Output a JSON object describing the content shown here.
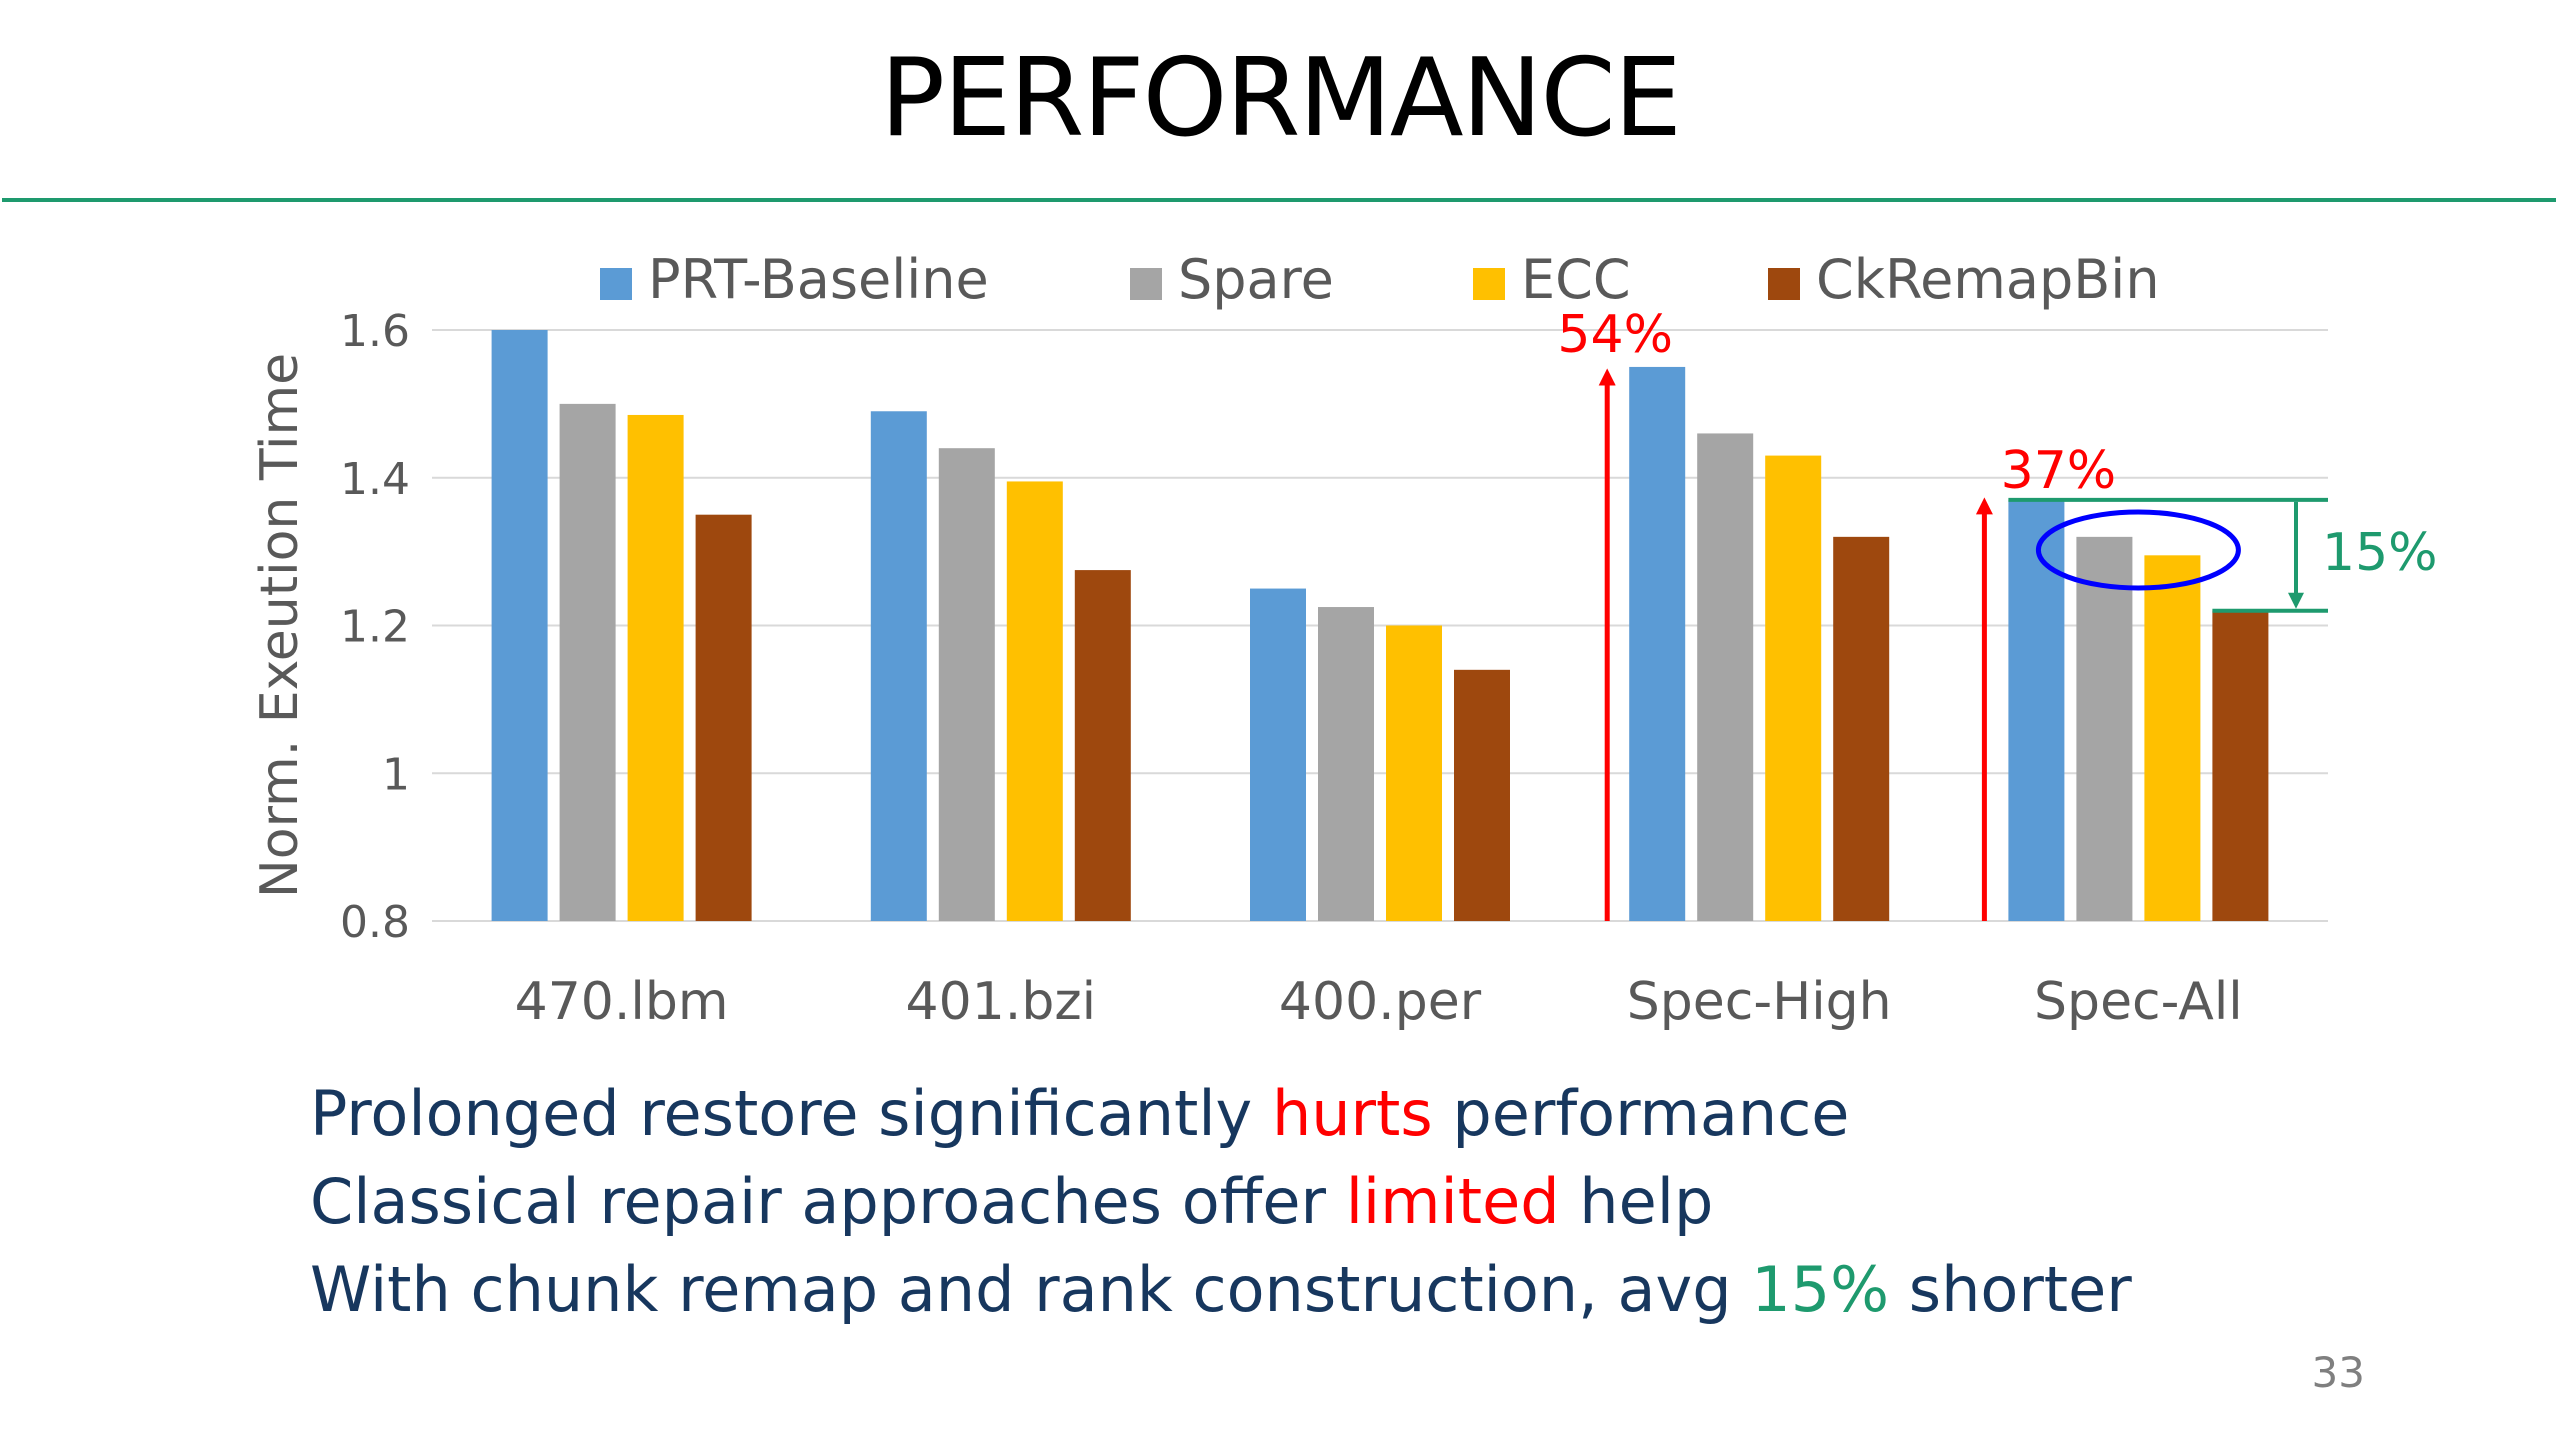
{
  "slide": {
    "title": "PERFORMANCE",
    "page_number": "33",
    "bullets": [
      {
        "before": "Prolonged restore significantly ",
        "highlight": "hurts",
        "highlight_color": "#ff0000",
        "after": " performance"
      },
      {
        "before": "Classical repair approaches offer ",
        "highlight": "limited",
        "highlight_color": "#ff0000",
        "after": " help"
      },
      {
        "before": "With chunk remap and rank construction, avg ",
        "highlight": "15%",
        "highlight_color": "#1e9a6e",
        "after": " shorter"
      }
    ]
  },
  "colors": {
    "accent_rule": "#1e9a6e",
    "bullet_text": "#17375e",
    "annotation_red": "#ff0000",
    "annotation_green": "#1e9a6e",
    "ellipse": "#0000ff"
  },
  "chart_data": {
    "type": "bar",
    "categories": [
      "470.lbm",
      "401.bzi",
      "400.per",
      "Spec-High",
      "Spec-All"
    ],
    "series": [
      {
        "name": "PRT-Baseline",
        "color": "#5b9bd5",
        "values": [
          1.6,
          1.49,
          1.25,
          1.55,
          1.37
        ]
      },
      {
        "name": "Spare",
        "color": "#a5a5a5",
        "values": [
          1.5,
          1.44,
          1.225,
          1.46,
          1.32
        ]
      },
      {
        "name": "ECC",
        "color": "#ffc000",
        "values": [
          1.485,
          1.395,
          1.2,
          1.43,
          1.295
        ]
      },
      {
        "name": "CkRemapBin",
        "color": "#9e480e",
        "values": [
          1.35,
          1.275,
          1.14,
          1.32,
          1.22
        ]
      }
    ],
    "ylabel": "Norm. Exeution Time",
    "ylim": [
      0.8,
      1.6
    ],
    "yticks": [
      0.8,
      1.0,
      1.2,
      1.4,
      1.6
    ],
    "ytick_labels": [
      "0.8",
      "1",
      "1.2",
      "1.4",
      "1.6"
    ],
    "grid": true,
    "legend_position": "top",
    "annotations": [
      {
        "text": "54%",
        "category": "Spec-High",
        "kind": "red up-arrow",
        "color": "#ff0000"
      },
      {
        "text": "37%",
        "category": "Spec-All",
        "kind": "red up-arrow",
        "color": "#ff0000"
      },
      {
        "text": "15%",
        "category": "Spec-All",
        "kind": "green bracket from PRT-Baseline to CkRemapBin",
        "color": "#1e9a6e"
      }
    ]
  }
}
